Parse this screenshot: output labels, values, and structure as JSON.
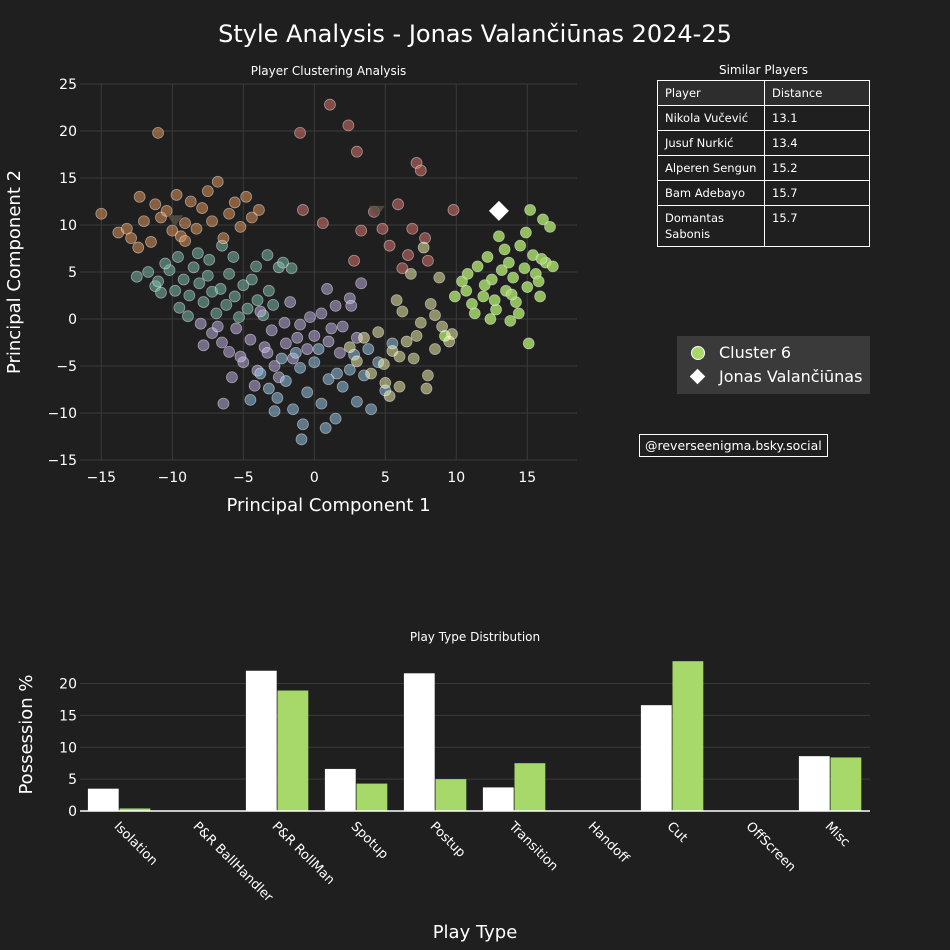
{
  "title": "Style Analysis - Jonas Valančiūnas 2024-25",
  "similar_players": {
    "title": "Similar Players",
    "headers": [
      "Player",
      "Distance"
    ],
    "rows": [
      [
        "Nikola Vučević",
        "13.1"
      ],
      [
        "Jusuf Nurkić",
        "13.4"
      ],
      [
        "Alperen Sengun",
        "15.2"
      ],
      [
        "Bam Adebayo",
        "15.7"
      ],
      [
        "Domantas Sabonis",
        "15.7"
      ]
    ]
  },
  "legend": {
    "cluster_label": "Cluster 6",
    "player_label": "Jonas Valančiūnas"
  },
  "credit": "@reverseenigma.bsky.social",
  "colors": {
    "background": "#1f1f1f",
    "player": "#ffffff",
    "cluster_6": "#a6d96a",
    "clusters": [
      "#7fc6b4",
      "#f0a060",
      "#e87a72",
      "#c9b8f0",
      "#9ed1f5",
      "#ffffb3",
      "#a6d96a"
    ]
  },
  "chart_data": [
    {
      "type": "scatter",
      "title": "Player Clustering Analysis",
      "xlabel": "Principal Component 1",
      "ylabel": "Principal Component 2",
      "xlim": [
        -16.5,
        18.5
      ],
      "ylim": [
        -15,
        25
      ],
      "xticks": [
        -15,
        -10,
        -5,
        0,
        5,
        10,
        15
      ],
      "yticks": [
        -15,
        -10,
        -5,
        0,
        5,
        10,
        15,
        20,
        25
      ],
      "series": [
        {
          "name": "Cluster 1",
          "color": "#7fc6b4",
          "points": [
            [
              -12.5,
              4.5
            ],
            [
              -11.7,
              5.0
            ],
            [
              -11.2,
              3.5
            ],
            [
              -10.8,
              2.8
            ],
            [
              -10.2,
              5.2
            ],
            [
              -9.8,
              3.0
            ],
            [
              -9.5,
              1.2
            ],
            [
              -9.2,
              4.2
            ],
            [
              -8.8,
              2.5
            ],
            [
              -8.5,
              5.5
            ],
            [
              -8.1,
              3.8
            ],
            [
              -7.8,
              1.8
            ],
            [
              -7.5,
              4.6
            ],
            [
              -7.2,
              2.9
            ],
            [
              -6.9,
              0.6
            ],
            [
              -6.6,
              3.2
            ],
            [
              -6.2,
              1.5
            ],
            [
              -6.0,
              4.8
            ],
            [
              -5.6,
              2.4
            ],
            [
              -5.3,
              0.2
            ],
            [
              -5.0,
              3.6
            ],
            [
              -4.7,
              1.1
            ],
            [
              -4.4,
              4.2
            ],
            [
              -4.0,
              2.0
            ],
            [
              -3.6,
              0.4
            ],
            [
              -3.2,
              3.0
            ],
            [
              -2.9,
              1.5
            ],
            [
              -2.5,
              5.5
            ],
            [
              -9.6,
              6.6
            ],
            [
              -8.2,
              7.0
            ],
            [
              -7.4,
              6.3
            ],
            [
              -6.5,
              7.8
            ],
            [
              -5.7,
              6.6
            ],
            [
              -4.1,
              5.6
            ],
            [
              -3.3,
              6.8
            ],
            [
              -2.2,
              6.0
            ],
            [
              -1.6,
              5.4
            ],
            [
              -10.5,
              5.9
            ],
            [
              -11.0,
              4.0
            ],
            [
              -8.9,
              0.3
            ]
          ]
        },
        {
          "name": "Cluster 2",
          "color": "#f0a060",
          "points": [
            [
              -15.0,
              11.2
            ],
            [
              -13.8,
              9.2
            ],
            [
              -13.2,
              9.6
            ],
            [
              -12.9,
              8.6
            ],
            [
              -12.3,
              13.0
            ],
            [
              -12.0,
              10.4
            ],
            [
              -11.5,
              8.2
            ],
            [
              -11.2,
              12.2
            ],
            [
              -10.8,
              10.8
            ],
            [
              -10.4,
              11.5
            ],
            [
              -10.0,
              9.4
            ],
            [
              -9.7,
              13.2
            ],
            [
              -9.4,
              8.8
            ],
            [
              -9.1,
              10.2
            ],
            [
              -8.7,
              12.5
            ],
            [
              -8.3,
              9.6
            ],
            [
              -7.9,
              11.8
            ],
            [
              -7.5,
              13.6
            ],
            [
              -7.2,
              10.4
            ],
            [
              -6.8,
              14.6
            ],
            [
              -6.4,
              8.6
            ],
            [
              -6.0,
              11.2
            ],
            [
              -5.6,
              12.4
            ],
            [
              -5.2,
              9.8
            ],
            [
              -4.8,
              13.0
            ],
            [
              -4.4,
              10.8
            ],
            [
              -3.9,
              11.6
            ],
            [
              -11.0,
              19.8
            ],
            [
              -9.1,
              8.3
            ],
            [
              -12.4,
              7.6
            ]
          ]
        },
        {
          "name": "Cluster 3",
          "color": "#e87a72",
          "points": [
            [
              -1.0,
              19.8
            ],
            [
              1.1,
              22.8
            ],
            [
              2.4,
              20.6
            ],
            [
              3.0,
              17.8
            ],
            [
              3.3,
              9.4
            ],
            [
              4.2,
              11.4
            ],
            [
              5.3,
              7.8
            ],
            [
              5.9,
              12.2
            ],
            [
              6.2,
              5.4
            ],
            [
              6.9,
              9.6
            ],
            [
              7.2,
              16.6
            ],
            [
              7.5,
              15.8
            ],
            [
              7.8,
              8.6
            ],
            [
              9.8,
              11.6
            ],
            [
              8.0,
              6.2
            ],
            [
              -0.8,
              11.6
            ],
            [
              0.6,
              10.2
            ],
            [
              2.8,
              6.2
            ],
            [
              4.8,
              9.6
            ],
            [
              6.6,
              6.8
            ]
          ]
        },
        {
          "name": "Cluster 4",
          "color": "#c9b8f0",
          "points": [
            [
              -8.0,
              -0.5
            ],
            [
              -7.2,
              -1.5
            ],
            [
              -6.5,
              -2.5
            ],
            [
              -6.0,
              -3.5
            ],
            [
              -5.5,
              -1.0
            ],
            [
              -5.0,
              -4.6
            ],
            [
              -4.5,
              -2.2
            ],
            [
              -4.0,
              -5.5
            ],
            [
              -3.5,
              -3.0
            ],
            [
              -3.0,
              -1.2
            ],
            [
              -2.5,
              -6.2
            ],
            [
              -2.0,
              -2.6
            ],
            [
              -1.5,
              -4.2
            ],
            [
              -1.0,
              -0.6
            ],
            [
              -0.5,
              -3.2
            ],
            [
              0.0,
              -1.8
            ],
            [
              0.5,
              0.6
            ],
            [
              1.0,
              -2.4
            ],
            [
              1.5,
              1.4
            ],
            [
              2.0,
              -0.8
            ],
            [
              2.5,
              2.2
            ],
            [
              3.0,
              -2.0
            ],
            [
              -6.8,
              -0.8
            ],
            [
              -3.8,
              0.8
            ],
            [
              -1.7,
              1.8
            ],
            [
              0.9,
              3.2
            ],
            [
              1.8,
              -3.6
            ],
            [
              -5.8,
              -6.2
            ],
            [
              -4.2,
              -7.1
            ],
            [
              -2.8,
              -5.0
            ],
            [
              -7.8,
              -2.8
            ],
            [
              -1.2,
              -2.0
            ],
            [
              -3.3,
              -3.6
            ],
            [
              -2.1,
              -0.4
            ],
            [
              2.6,
              1.4
            ],
            [
              3.3,
              3.8
            ],
            [
              -0.3,
              0.2
            ],
            [
              1.2,
              -1.0
            ],
            [
              -6.4,
              -9.0
            ],
            [
              -5.2,
              -4.0
            ]
          ]
        },
        {
          "name": "Cluster 5",
          "color": "#9ed1f5",
          "points": [
            [
              -3.8,
              -5.8
            ],
            [
              -3.2,
              -7.4
            ],
            [
              -2.6,
              -8.4
            ],
            [
              -2.0,
              -6.6
            ],
            [
              -1.5,
              -9.6
            ],
            [
              -1.0,
              -5.2
            ],
            [
              -0.5,
              -7.8
            ],
            [
              0.0,
              -4.6
            ],
            [
              0.5,
              -9.0
            ],
            [
              1.0,
              -6.4
            ],
            [
              1.5,
              -10.6
            ],
            [
              2.0,
              -7.2
            ],
            [
              2.5,
              -5.4
            ],
            [
              3.0,
              -8.8
            ],
            [
              3.5,
              -6.0
            ],
            [
              4.0,
              -9.6
            ],
            [
              4.5,
              -4.6
            ],
            [
              5.0,
              -7.6
            ],
            [
              5.5,
              -2.6
            ],
            [
              -2.3,
              -4.2
            ],
            [
              -1.3,
              -3.6
            ],
            [
              0.3,
              -3.2
            ],
            [
              1.6,
              -5.8
            ],
            [
              2.8,
              -3.8
            ],
            [
              -0.8,
              -11.2
            ],
            [
              -0.9,
              -12.8
            ],
            [
              0.8,
              -11.6
            ],
            [
              3.8,
              -3.2
            ],
            [
              -2.8,
              -9.8
            ],
            [
              -4.5,
              -8.6
            ]
          ]
        },
        {
          "name": "Cluster 6",
          "color": "#a6d96a",
          "points": [
            [
              9.2,
              -1.8
            ],
            [
              9.9,
              2.4
            ],
            [
              10.4,
              4.0
            ],
            [
              10.7,
              3.0
            ],
            [
              11.1,
              1.6
            ],
            [
              11.5,
              5.6
            ],
            [
              11.9,
              2.4
            ],
            [
              12.2,
              6.6
            ],
            [
              12.5,
              4.2
            ],
            [
              12.8,
              1.0
            ],
            [
              13.0,
              8.8
            ],
            [
              13.2,
              5.2
            ],
            [
              13.5,
              3.0
            ],
            [
              13.7,
              6.0
            ],
            [
              14.0,
              4.4
            ],
            [
              14.2,
              1.8
            ],
            [
              14.5,
              7.8
            ],
            [
              14.8,
              5.4
            ],
            [
              15.0,
              3.4
            ],
            [
              15.2,
              11.6
            ],
            [
              15.4,
              6.8
            ],
            [
              15.6,
              4.8
            ],
            [
              15.9,
              2.4
            ],
            [
              16.1,
              10.6
            ],
            [
              16.3,
              6.0
            ],
            [
              16.6,
              9.8
            ],
            [
              16.8,
              5.6
            ],
            [
              15.1,
              -2.6
            ],
            [
              12.4,
              0.0
            ],
            [
              13.8,
              -0.2
            ],
            [
              10.8,
              4.8
            ],
            [
              12.0,
              3.6
            ],
            [
              14.4,
              0.6
            ],
            [
              15.8,
              4.0
            ],
            [
              13.4,
              7.4
            ],
            [
              16.0,
              6.4
            ],
            [
              11.3,
              0.6
            ],
            [
              12.7,
              2.0
            ],
            [
              14.9,
              9.2
            ],
            [
              13.9,
              2.6
            ]
          ]
        },
        {
          "name": "Cluster 7",
          "color": "#ffffb3",
          "points": [
            [
              2.5,
              -3.0
            ],
            [
              3.0,
              -4.5
            ],
            [
              3.5,
              -2.0
            ],
            [
              4.0,
              -5.8
            ],
            [
              4.5,
              -1.4
            ],
            [
              5.0,
              -6.8
            ],
            [
              5.5,
              -3.4
            ],
            [
              6.0,
              -7.2
            ],
            [
              6.5,
              -2.4
            ],
            [
              7.0,
              -4.2
            ],
            [
              7.5,
              -0.4
            ],
            [
              8.0,
              -6.0
            ],
            [
              8.5,
              -3.2
            ],
            [
              9.0,
              -0.8
            ],
            [
              9.5,
              -2.4
            ],
            [
              7.2,
              -1.8
            ],
            [
              6.2,
              0.8
            ],
            [
              8.2,
              1.6
            ],
            [
              5.8,
              2.0
            ],
            [
              6.8,
              4.8
            ],
            [
              7.7,
              7.6
            ],
            [
              8.5,
              0.4
            ],
            [
              9.7,
              -1.6
            ],
            [
              4.9,
              -4.8
            ],
            [
              5.3,
              -8.2
            ],
            [
              7.9,
              -7.4
            ],
            [
              6.0,
              -4.0
            ],
            [
              8.8,
              4.4
            ]
          ]
        }
      ],
      "centroids": [
        [
          -9.8,
          10.5
        ],
        [
          4.4,
          11.5
        ]
      ],
      "player": {
        "name": "Jonas Valančiūnas",
        "x": 13.0,
        "y": 11.5
      }
    },
    {
      "type": "bar",
      "title": "Play Type Distribution",
      "xlabel": "Play Type",
      "ylabel": "Possession %",
      "ylim": [
        0,
        24
      ],
      "yticks": [
        0,
        5,
        10,
        15,
        20
      ],
      "categories": [
        "Isolation",
        "P&R BallHandler",
        "P&R RollMan",
        "Spotup",
        "Postup",
        "Transition",
        "Handoff",
        "Cut",
        "OffScreen",
        "Misc"
      ],
      "series": [
        {
          "name": "Jonas Valančiūnas",
          "color": "#ffffff",
          "values": [
            3.5,
            0,
            22.0,
            6.6,
            21.6,
            3.7,
            0,
            16.6,
            0,
            8.6
          ]
        },
        {
          "name": "Cluster 6",
          "color": "#a6d96a",
          "values": [
            0.4,
            0,
            18.9,
            4.3,
            5.0,
            7.5,
            0,
            23.5,
            0,
            8.4
          ]
        }
      ]
    }
  ]
}
